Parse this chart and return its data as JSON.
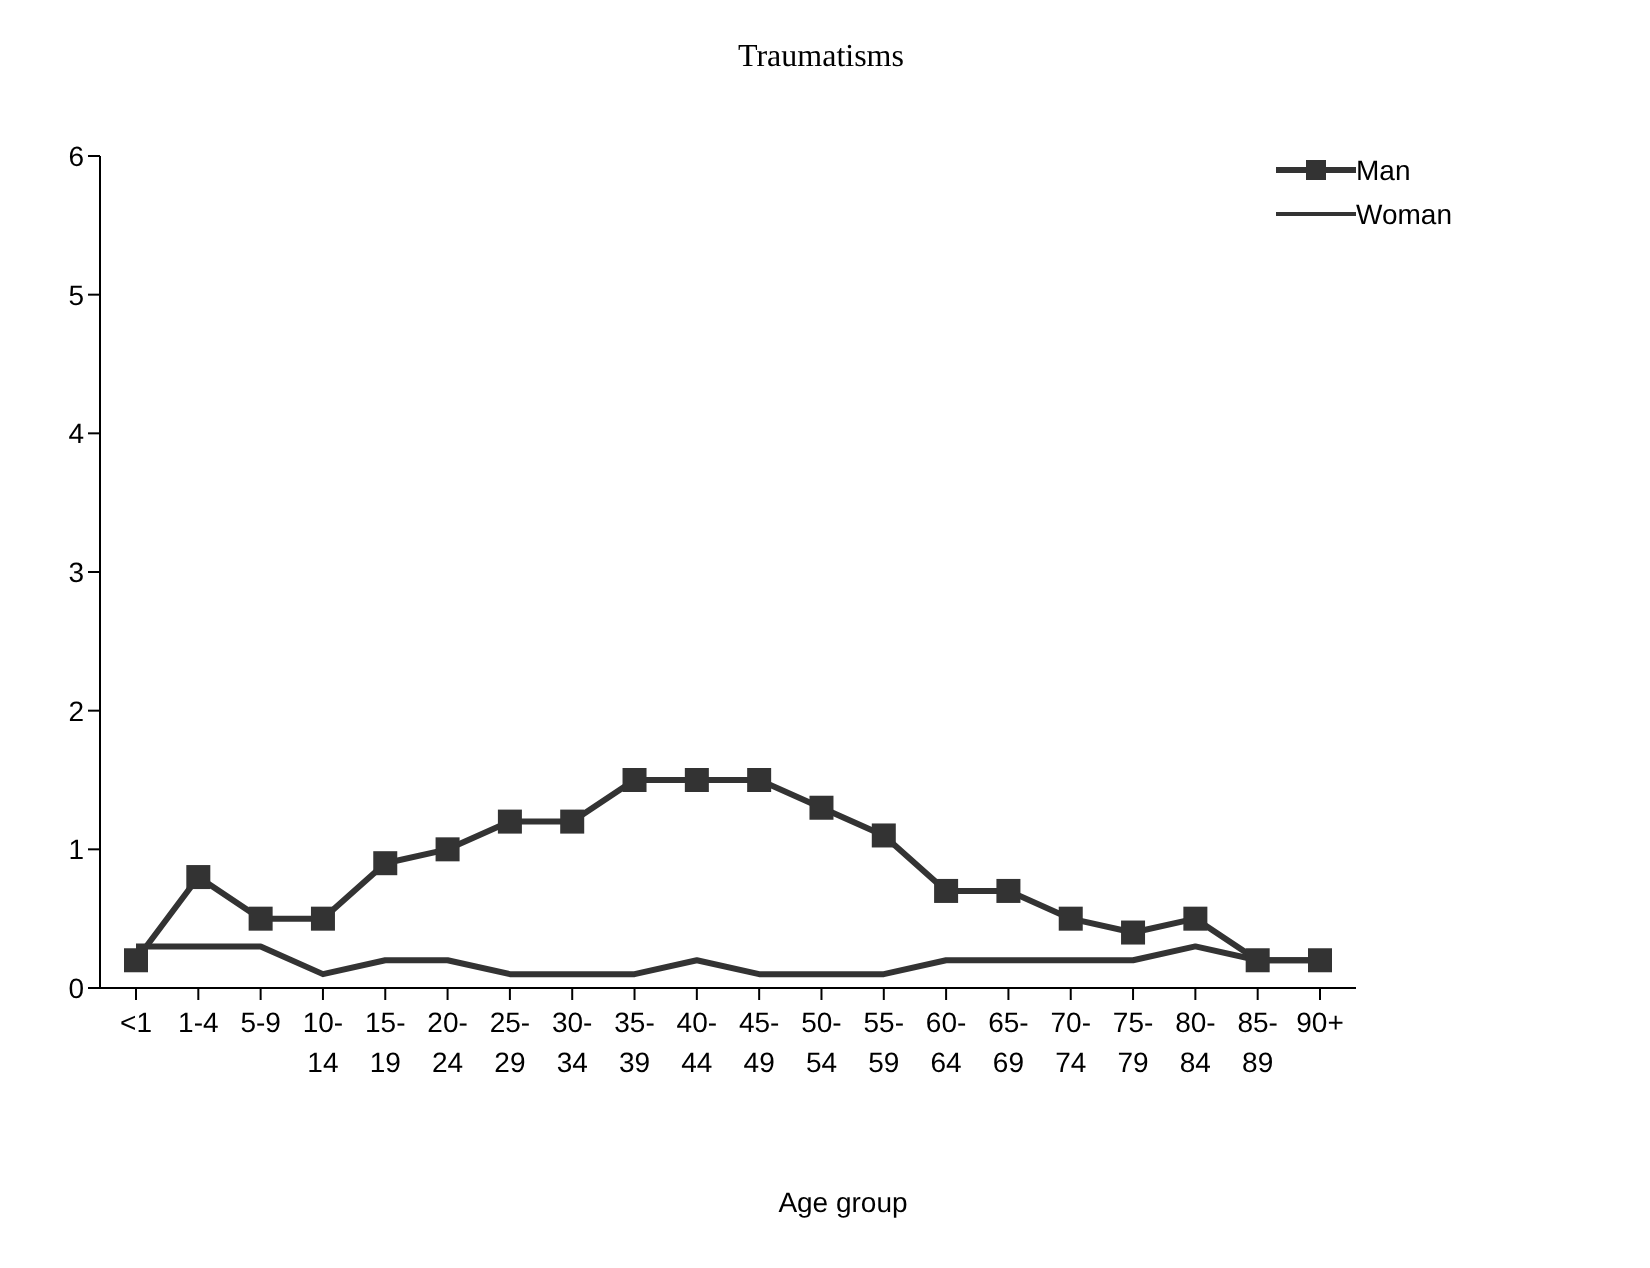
{
  "chart_data": {
    "type": "line",
    "title": "Traumatisms",
    "xlabel": "Age group",
    "categories": [
      "<1",
      "1-4",
      "5-9",
      "10-\n14",
      "15-\n19",
      "20-\n24",
      "25-\n29",
      "30-\n34",
      "35-\n39",
      "40-\n44",
      "45-\n49",
      "50-\n54",
      "55-\n59",
      "60-\n64",
      "65-\n69",
      "70-\n74",
      "75-\n79",
      "80-\n84",
      "85-\n89",
      "90+"
    ],
    "series": [
      {
        "name": "Man",
        "color": "#333333",
        "marker": "square",
        "values": [
          0.2,
          0.8,
          0.5,
          0.5,
          0.9,
          1.0,
          1.2,
          1.2,
          1.5,
          1.5,
          1.5,
          1.3,
          1.1,
          0.7,
          0.7,
          0.5,
          0.4,
          0.5,
          0.2,
          0.2
        ]
      },
      {
        "name": "Woman",
        "color": "#333333",
        "marker": "none",
        "values": [
          0.3,
          0.3,
          0.3,
          0.1,
          0.2,
          0.2,
          0.1,
          0.1,
          0.1,
          0.2,
          0.1,
          0.1,
          0.1,
          0.2,
          0.2,
          0.2,
          0.2,
          0.3,
          0.2,
          0.2
        ]
      }
    ],
    "ylim": [
      0,
      6
    ],
    "yticks": [
      0,
      1,
      2,
      3,
      4,
      5,
      6
    ],
    "grid": false,
    "legend": "top right"
  }
}
